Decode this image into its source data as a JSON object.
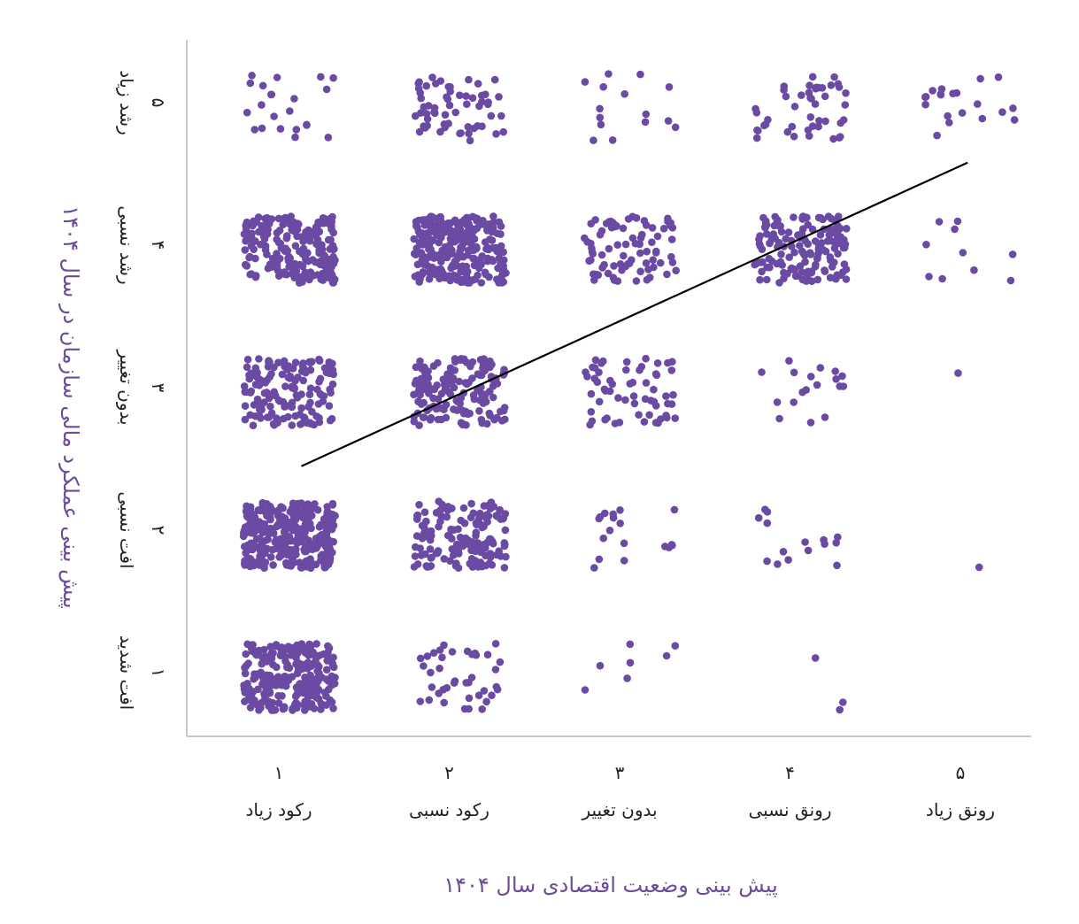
{
  "chart_data": {
    "type": "scatter",
    "subtype": "jittered categorical scatter with linear trend line",
    "xlabel": "پیش بینی وضعیت اقتصادی سال ۱۴۰۴",
    "ylabel": "پیش بینی عملکرد مالی سازمان در سال ۱۴۰۴",
    "x_ticks": [
      {
        "value": 1,
        "number": "۱",
        "label": "رکود زیاد"
      },
      {
        "value": 2,
        "number": "۲",
        "label": "رکود نسبی"
      },
      {
        "value": 3,
        "number": "۳",
        "label": "بدون تغییر"
      },
      {
        "value": 4,
        "number": "۴",
        "label": "رونق نسبی"
      },
      {
        "value": 5,
        "number": "۵",
        "label": "رونق زیاد"
      }
    ],
    "y_ticks": [
      {
        "value": 1,
        "number": "۱",
        "label": "افت شدید"
      },
      {
        "value": 2,
        "number": "۲",
        "label": "افت نسبی"
      },
      {
        "value": 3,
        "number": "۳",
        "label": "بدون تغییر"
      },
      {
        "value": 4,
        "number": "۴",
        "label": "رشد نسبی"
      },
      {
        "value": 5,
        "number": "۵",
        "label": "رشد زیاد"
      }
    ],
    "xlim": [
      0.3,
      5.7
    ],
    "ylim": [
      0.6,
      5.5
    ],
    "grid": false,
    "point_color": "#6a4aa3",
    "line_color": "#000000",
    "approx_counts_by_y_then_x": {
      "5": [
        22,
        60,
        15,
        45,
        20
      ],
      "4": [
        200,
        250,
        80,
        150,
        10
      ],
      "3": [
        150,
        150,
        60,
        18,
        1
      ],
      "2": [
        300,
        150,
        18,
        15,
        1
      ],
      "1": [
        250,
        40,
        7,
        3,
        0
      ]
    },
    "jitter": 0.27,
    "trend_line": {
      "x": [
        1.07,
        4.98
      ],
      "y": [
        2.48,
        4.61
      ]
    }
  }
}
